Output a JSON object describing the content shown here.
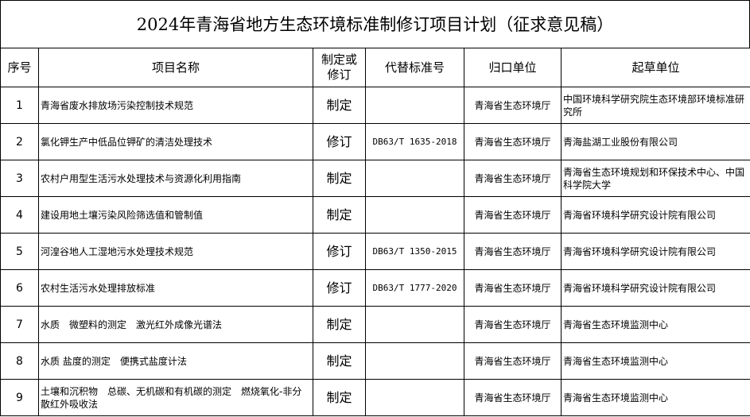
{
  "title": "2024年青海省地方生态环境标准制修订项目计划（征求意见稿）",
  "headers": [
    "序号",
    "项目名称",
    "制定或修订",
    "代替标准号",
    "归口单位",
    "起草单位"
  ],
  "rows": [
    {
      "no": "1",
      "name": "青海省废水排放场污染控制技术规范",
      "type": "制定",
      "replaces": "",
      "authority": "青海省生态环境厅",
      "drafter": "中国环境科学研究院生态环境部环境标准研究所"
    },
    {
      "no": "2",
      "name": "氯化钾生产中低品位钾矿的清洁处理技术",
      "type": "修订",
      "replaces": "DB63/T 1635-2018",
      "authority": "青海省生态环境厅",
      "drafter": "青海盐湖工业股份有限公司"
    },
    {
      "no": "3",
      "name": "农村户用型生活污水处理技术与资源化利用指南",
      "type": "制定",
      "replaces": "",
      "authority": "青海省生态环境厅",
      "drafter": "青海省生态环境规划和环保技术中心、中国科学院大学"
    },
    {
      "no": "4",
      "name": "建设用地土壤污染风险筛选值和管制值",
      "type": "制定",
      "replaces": "",
      "authority": "青海省生态环境厅",
      "drafter": "青海省环境科学研究设计院有限公司"
    },
    {
      "no": "5",
      "name": "河湟谷地人工湿地污水处理技术规范",
      "type": "修订",
      "replaces": "DB63/T 1350-2015",
      "authority": "青海省生态环境厅",
      "drafter": "青海省环境科学研究设计院有限公司"
    },
    {
      "no": "6",
      "name": "农村生活污水处理排放标准",
      "type": "修订",
      "replaces": "DB63/T 1777-2020",
      "authority": "青海省生态环境厅",
      "drafter": "青海省环境科学研究设计院有限公司"
    },
    {
      "no": "7",
      "name": "水质　微塑料的测定　激光红外成像光谱法",
      "type": "制定",
      "replaces": "",
      "authority": "青海省生态环境厅",
      "drafter": "青海省生态环境监测中心"
    },
    {
      "no": "8",
      "name": "水质 盐度的测定　便携式盐度计法",
      "type": "制定",
      "replaces": "",
      "authority": "青海省生态环境厅",
      "drafter": "青海省生态环境监测中心"
    },
    {
      "no": "9",
      "name": "土壤和沉积物　总碳、无机碳和有机碳的测定　燃烧氧化-非分散红外吸收法",
      "type": "制定",
      "replaces": "",
      "authority": "青海省生态环境厅",
      "drafter": "青海省生态环境监测中心"
    }
  ]
}
